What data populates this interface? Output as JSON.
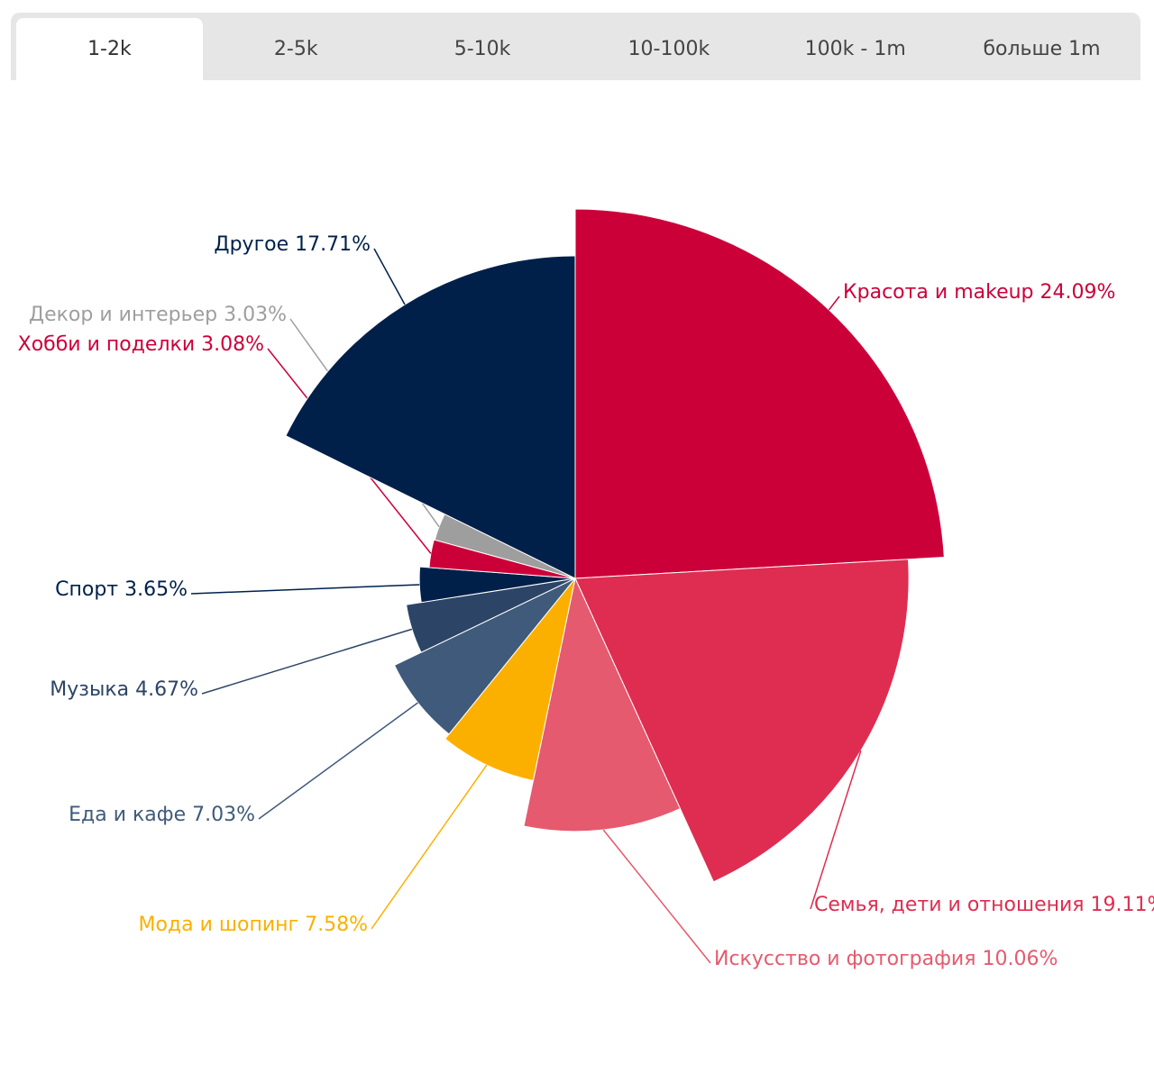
{
  "tabs": [
    {
      "label": "1-2k",
      "active": true
    },
    {
      "label": "2-5k",
      "active": false
    },
    {
      "label": "5-10k",
      "active": false
    },
    {
      "label": "10-100k",
      "active": false
    },
    {
      "label": "100k - 1m",
      "active": false
    },
    {
      "label": "больше 1m",
      "active": false
    }
  ],
  "chart_data": {
    "type": "pie",
    "variant": "variable-radius",
    "title": "",
    "series": [
      {
        "name": "Красота и makeup",
        "label": "Красота и makeup 24.09%",
        "value": 24.09,
        "color": "#cc0039"
      },
      {
        "name": "Семья, дети и отношения",
        "label": "Семья, дети и отношения 19.11%",
        "value": 19.11,
        "color": "#de2d50"
      },
      {
        "name": "Искусство и фотография",
        "label": "Искусство и фотография 10.06%",
        "value": 10.06,
        "color": "#e55a6f"
      },
      {
        "name": "Мода и шопинг",
        "label": "Мода и шопинг 7.58%",
        "value": 7.58,
        "color": "#fbb000"
      },
      {
        "name": "Еда и кафе",
        "label": "Еда и кафе 7.03%",
        "value": 7.03,
        "color": "#3f5a7a"
      },
      {
        "name": "Музыка",
        "label": "Музыка 4.67%",
        "value": 4.67,
        "color": "#2c4466"
      },
      {
        "name": "Спорт",
        "label": "Спорт 3.65%",
        "value": 3.65,
        "color": "#00204a"
      },
      {
        "name": "Хобби и поделки",
        "label": "Хобби и поделки 3.08%",
        "value": 3.08,
        "color": "#cc0039"
      },
      {
        "name": "Декор и интерьер",
        "label": "Декор и интерьер 3.03%",
        "value": 3.03,
        "color": "#9e9e9e"
      },
      {
        "name": "Другое",
        "label": "Другое 17.71%",
        "value": 17.71,
        "color": "#00204a"
      }
    ]
  }
}
